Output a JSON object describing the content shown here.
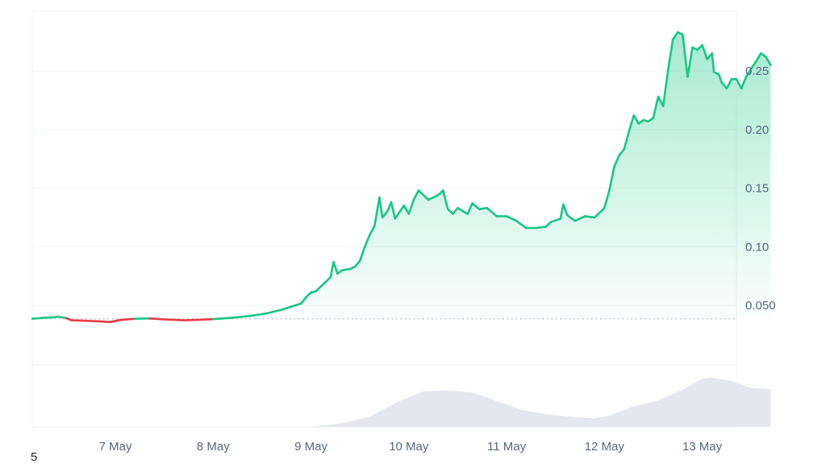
{
  "corner_label": "5",
  "colors": {
    "up_line": "#16c784",
    "down_line": "#ea3943",
    "area_top": "#16c784",
    "volume_fill": "#e4e7ee",
    "grid": "#eff2f5",
    "baseline": "#a6b0c3",
    "axis_text": "#58667e"
  },
  "chart_data": {
    "type": "area",
    "title": "",
    "xlabel": "",
    "ylabel": "",
    "x_tick_labels": [
      "7 May",
      "8 May",
      "9 May",
      "10 May",
      "11 May",
      "12 May",
      "13 May"
    ],
    "y_tick_labels": [
      "0.050",
      "0.10",
      "0.15",
      "0.20",
      "0.25"
    ],
    "y_ticks": [
      0.05,
      0.1,
      0.15,
      0.2,
      0.25
    ],
    "ylim": [
      -0.11,
      0.3
    ],
    "xlim": [
      6.15,
      13.35
    ],
    "grid": true,
    "baseline": 0.0385,
    "price": [
      [
        6.15,
        0.0385
      ],
      [
        6.25,
        0.0392
      ],
      [
        6.35,
        0.0397
      ],
      [
        6.42,
        0.0403
      ],
      [
        6.5,
        0.039
      ],
      [
        6.55,
        0.0372
      ],
      [
        6.7,
        0.0368
      ],
      [
        6.85,
        0.0362
      ],
      [
        6.95,
        0.0358
      ],
      [
        7.05,
        0.0375
      ],
      [
        7.2,
        0.0385
      ],
      [
        7.35,
        0.0388
      ],
      [
        7.5,
        0.038
      ],
      [
        7.7,
        0.0372
      ],
      [
        7.85,
        0.0376
      ],
      [
        8.0,
        0.0382
      ],
      [
        8.1,
        0.0388
      ],
      [
        8.25,
        0.0398
      ],
      [
        8.4,
        0.0412
      ],
      [
        8.55,
        0.0432
      ],
      [
        8.7,
        0.0462
      ],
      [
        8.8,
        0.049
      ],
      [
        8.9,
        0.0515
      ],
      [
        8.95,
        0.057
      ],
      [
        9.0,
        0.061
      ],
      [
        9.05,
        0.062
      ],
      [
        9.1,
        0.066
      ],
      [
        9.15,
        0.07
      ],
      [
        9.2,
        0.074
      ],
      [
        9.23,
        0.087
      ],
      [
        9.27,
        0.077
      ],
      [
        9.32,
        0.08
      ],
      [
        9.4,
        0.081
      ],
      [
        9.45,
        0.083
      ],
      [
        9.5,
        0.088
      ],
      [
        9.55,
        0.1
      ],
      [
        9.6,
        0.11
      ],
      [
        9.65,
        0.118
      ],
      [
        9.7,
        0.142
      ],
      [
        9.73,
        0.125
      ],
      [
        9.78,
        0.13
      ],
      [
        9.82,
        0.138
      ],
      [
        9.86,
        0.124
      ],
      [
        9.9,
        0.129
      ],
      [
        9.95,
        0.135
      ],
      [
        10.0,
        0.128
      ],
      [
        10.05,
        0.14
      ],
      [
        10.1,
        0.148
      ],
      [
        10.15,
        0.144
      ],
      [
        10.2,
        0.14
      ],
      [
        10.3,
        0.144
      ],
      [
        10.35,
        0.148
      ],
      [
        10.4,
        0.132
      ],
      [
        10.45,
        0.128
      ],
      [
        10.5,
        0.133
      ],
      [
        10.6,
        0.128
      ],
      [
        10.65,
        0.137
      ],
      [
        10.72,
        0.132
      ],
      [
        10.8,
        0.133
      ],
      [
        10.9,
        0.126
      ],
      [
        11.0,
        0.126
      ],
      [
        11.1,
        0.122
      ],
      [
        11.2,
        0.116
      ],
      [
        11.3,
        0.116
      ],
      [
        11.4,
        0.117
      ],
      [
        11.45,
        0.121
      ],
      [
        11.55,
        0.124
      ],
      [
        11.58,
        0.136
      ],
      [
        11.62,
        0.127
      ],
      [
        11.7,
        0.122
      ],
      [
        11.8,
        0.126
      ],
      [
        11.9,
        0.125
      ],
      [
        12.0,
        0.133
      ],
      [
        12.05,
        0.148
      ],
      [
        12.1,
        0.168
      ],
      [
        12.15,
        0.178
      ],
      [
        12.2,
        0.183
      ],
      [
        12.25,
        0.198
      ],
      [
        12.3,
        0.212
      ],
      [
        12.35,
        0.205
      ],
      [
        12.4,
        0.208
      ],
      [
        12.45,
        0.207
      ],
      [
        12.5,
        0.21
      ],
      [
        12.55,
        0.228
      ],
      [
        12.6,
        0.22
      ],
      [
        12.65,
        0.25
      ],
      [
        12.7,
        0.277
      ],
      [
        12.75,
        0.283
      ],
      [
        12.8,
        0.281
      ],
      [
        12.85,
        0.245
      ],
      [
        12.9,
        0.27
      ],
      [
        12.95,
        0.268
      ],
      [
        13.0,
        0.272
      ],
      [
        13.05,
        0.26
      ],
      [
        13.1,
        0.265
      ],
      [
        13.12,
        0.249
      ],
      [
        13.17,
        0.247
      ],
      [
        13.2,
        0.24
      ],
      [
        13.25,
        0.235
      ],
      [
        13.3,
        0.243
      ],
      [
        13.35,
        0.243
      ],
      [
        13.4,
        0.235
      ],
      [
        13.45,
        0.245
      ],
      [
        13.5,
        0.252
      ],
      [
        13.55,
        0.258
      ],
      [
        13.6,
        0.265
      ],
      [
        13.65,
        0.262
      ],
      [
        13.7,
        0.255
      ]
    ],
    "volume": [
      [
        6.15,
        0
      ],
      [
        9.0,
        0
      ],
      [
        9.3,
        0.06
      ],
      [
        9.6,
        0.18
      ],
      [
        9.9,
        0.45
      ],
      [
        10.15,
        0.62
      ],
      [
        10.4,
        0.64
      ],
      [
        10.65,
        0.6
      ],
      [
        10.9,
        0.45
      ],
      [
        11.15,
        0.3
      ],
      [
        11.4,
        0.22
      ],
      [
        11.7,
        0.17
      ],
      [
        11.9,
        0.15
      ],
      [
        12.05,
        0.2
      ],
      [
        12.3,
        0.36
      ],
      [
        12.55,
        0.46
      ],
      [
        12.8,
        0.65
      ],
      [
        13.0,
        0.84
      ],
      [
        13.1,
        0.86
      ],
      [
        13.3,
        0.8
      ],
      [
        13.5,
        0.68
      ],
      [
        13.7,
        0.66
      ]
    ]
  }
}
